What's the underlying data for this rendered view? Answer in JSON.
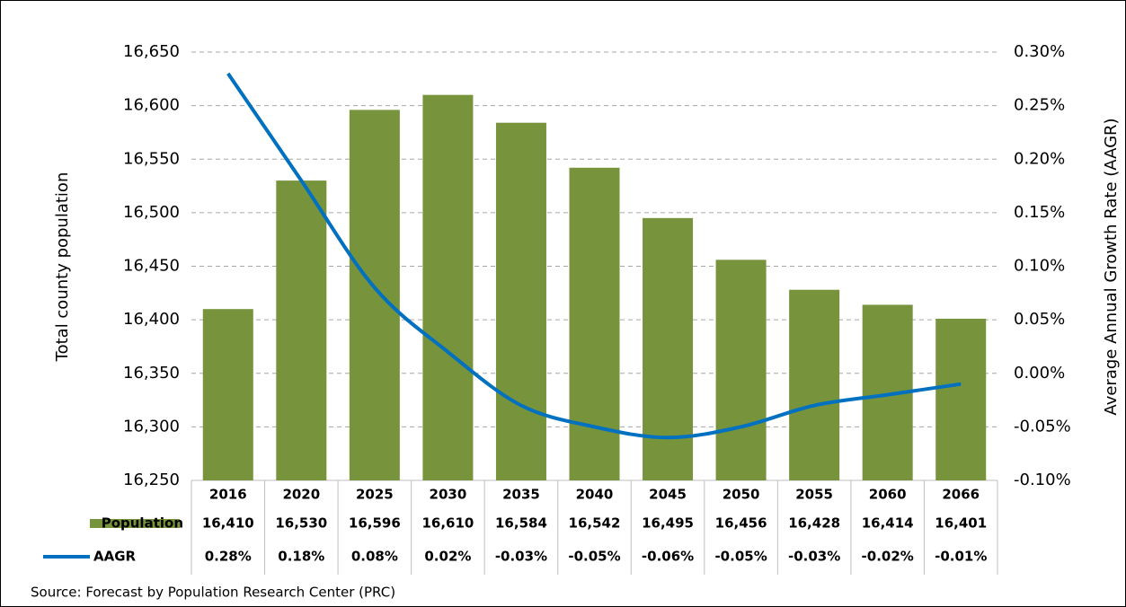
{
  "chart_data": {
    "type": "bar-line",
    "ylabel": "Total county population",
    "y2label": "Average Annual Growth Rate (AAGR)",
    "source": "Source: Forecast by Population Research Center (PRC)",
    "categories": [
      "2016",
      "2020",
      "2025",
      "2030",
      "2035",
      "2040",
      "2045",
      "2050",
      "2055",
      "2060",
      "2066"
    ],
    "series": [
      {
        "name": "Population",
        "type": "bar",
        "color": "#77933c",
        "values": [
          16410,
          16530,
          16596,
          16610,
          16584,
          16542,
          16495,
          16456,
          16428,
          16414,
          16401
        ],
        "value_labels": [
          "16,410",
          "16,530",
          "16,596",
          "16,610",
          "16,584",
          "16,542",
          "16,495",
          "16,456",
          "16,428",
          "16,414",
          "16,401"
        ]
      },
      {
        "name": "AAGR",
        "type": "line",
        "axis": "y2",
        "color": "#0070c0",
        "values": [
          0.28,
          0.18,
          0.08,
          0.02,
          -0.03,
          -0.05,
          -0.06,
          -0.05,
          -0.03,
          -0.02,
          -0.01
        ],
        "value_labels": [
          "0.28%",
          "0.18%",
          "0.08%",
          "0.02%",
          "-0.03%",
          "-0.05%",
          "-0.06%",
          "-0.05%",
          "-0.03%",
          "-0.02%",
          "-0.01%"
        ]
      }
    ],
    "ylim": [
      16250,
      16650
    ],
    "yticks": [
      {
        "value": 16250,
        "label": "16,250"
      },
      {
        "value": 16300,
        "label": "16,300"
      },
      {
        "value": 16350,
        "label": "16,350"
      },
      {
        "value": 16400,
        "label": "16,400"
      },
      {
        "value": 16450,
        "label": "16,450"
      },
      {
        "value": 16500,
        "label": "16,500"
      },
      {
        "value": 16550,
        "label": "16,550"
      },
      {
        "value": 16600,
        "label": "16,600"
      },
      {
        "value": 16650,
        "label": "16,650"
      }
    ],
    "y2lim": [
      -0.1,
      0.3
    ],
    "y2ticks": [
      {
        "value": -0.1,
        "label": "-0.10%"
      },
      {
        "value": -0.05,
        "label": "-0.05%"
      },
      {
        "value": 0,
        "label": "0.00%"
      },
      {
        "value": 0.05,
        "label": "0.05%"
      },
      {
        "value": 0.1,
        "label": "0.10%"
      },
      {
        "value": 0.15,
        "label": "0.15%"
      },
      {
        "value": 0.2,
        "label": "0.20%"
      },
      {
        "value": 0.25,
        "label": "0.25%"
      },
      {
        "value": 0.3,
        "label": "0.30%"
      }
    ],
    "grid": true
  }
}
